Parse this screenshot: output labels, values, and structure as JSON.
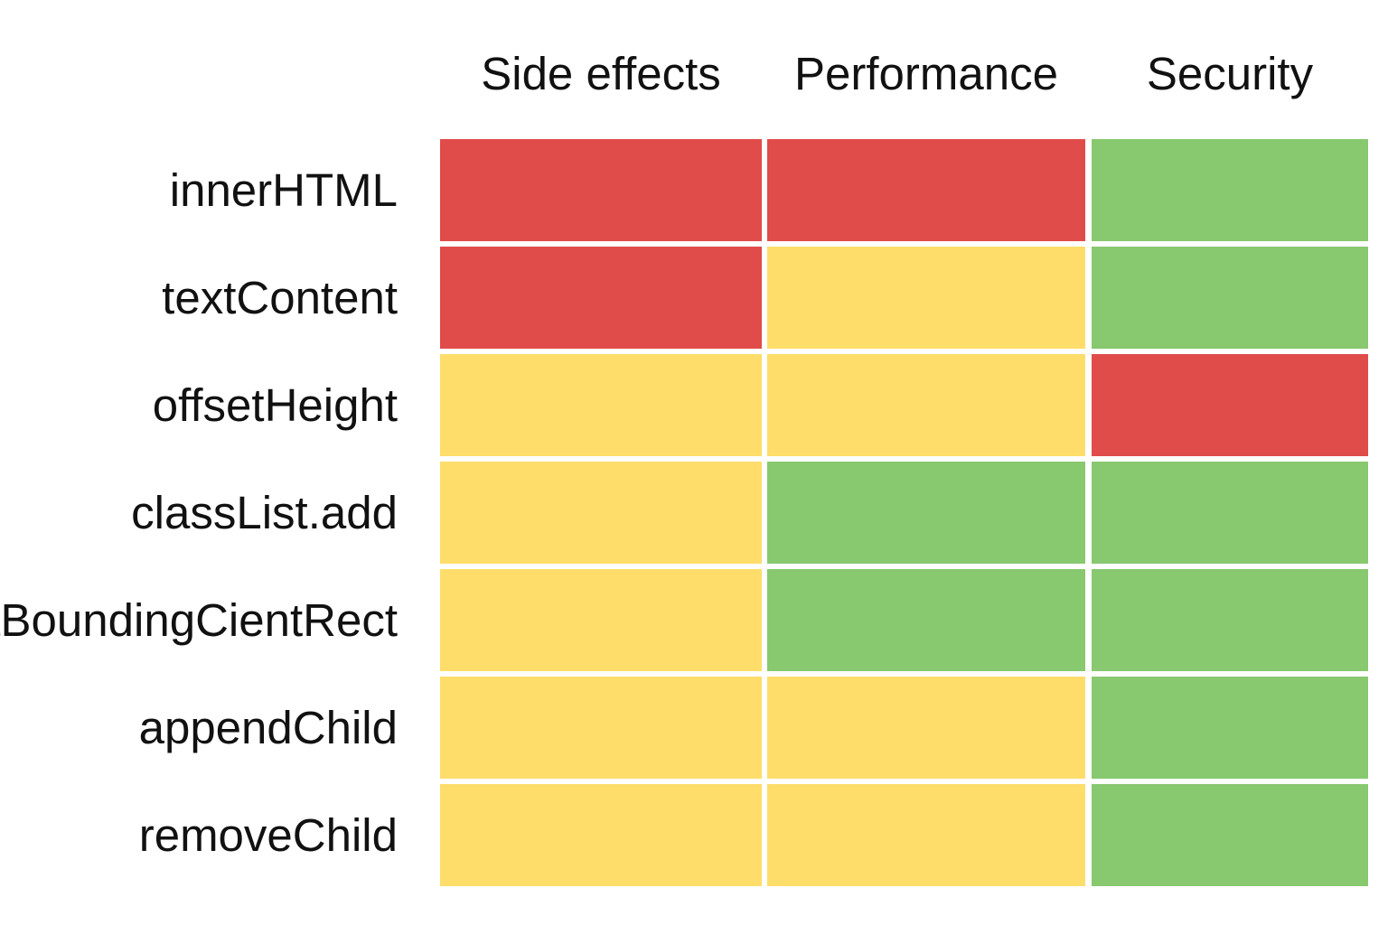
{
  "chart_data": {
    "type": "heatmap",
    "columns": [
      "Side effects",
      "Performance",
      "Security"
    ],
    "rows": [
      "innerHTML",
      "textContent",
      "offsetHeight",
      "classList.add",
      "etBoundingCientRect",
      "appendChild",
      "removeChild"
    ],
    "levels": {
      "red": "#E04C4A",
      "yellow": "#FEDD6A",
      "green": "#88C86F"
    },
    "values": [
      [
        "red",
        "red",
        "green"
      ],
      [
        "red",
        "yellow",
        "green"
      ],
      [
        "yellow",
        "yellow",
        "red"
      ],
      [
        "yellow",
        "green",
        "green"
      ],
      [
        "yellow",
        "green",
        "green"
      ],
      [
        "yellow",
        "yellow",
        "green"
      ],
      [
        "yellow",
        "yellow",
        "green"
      ]
    ]
  }
}
